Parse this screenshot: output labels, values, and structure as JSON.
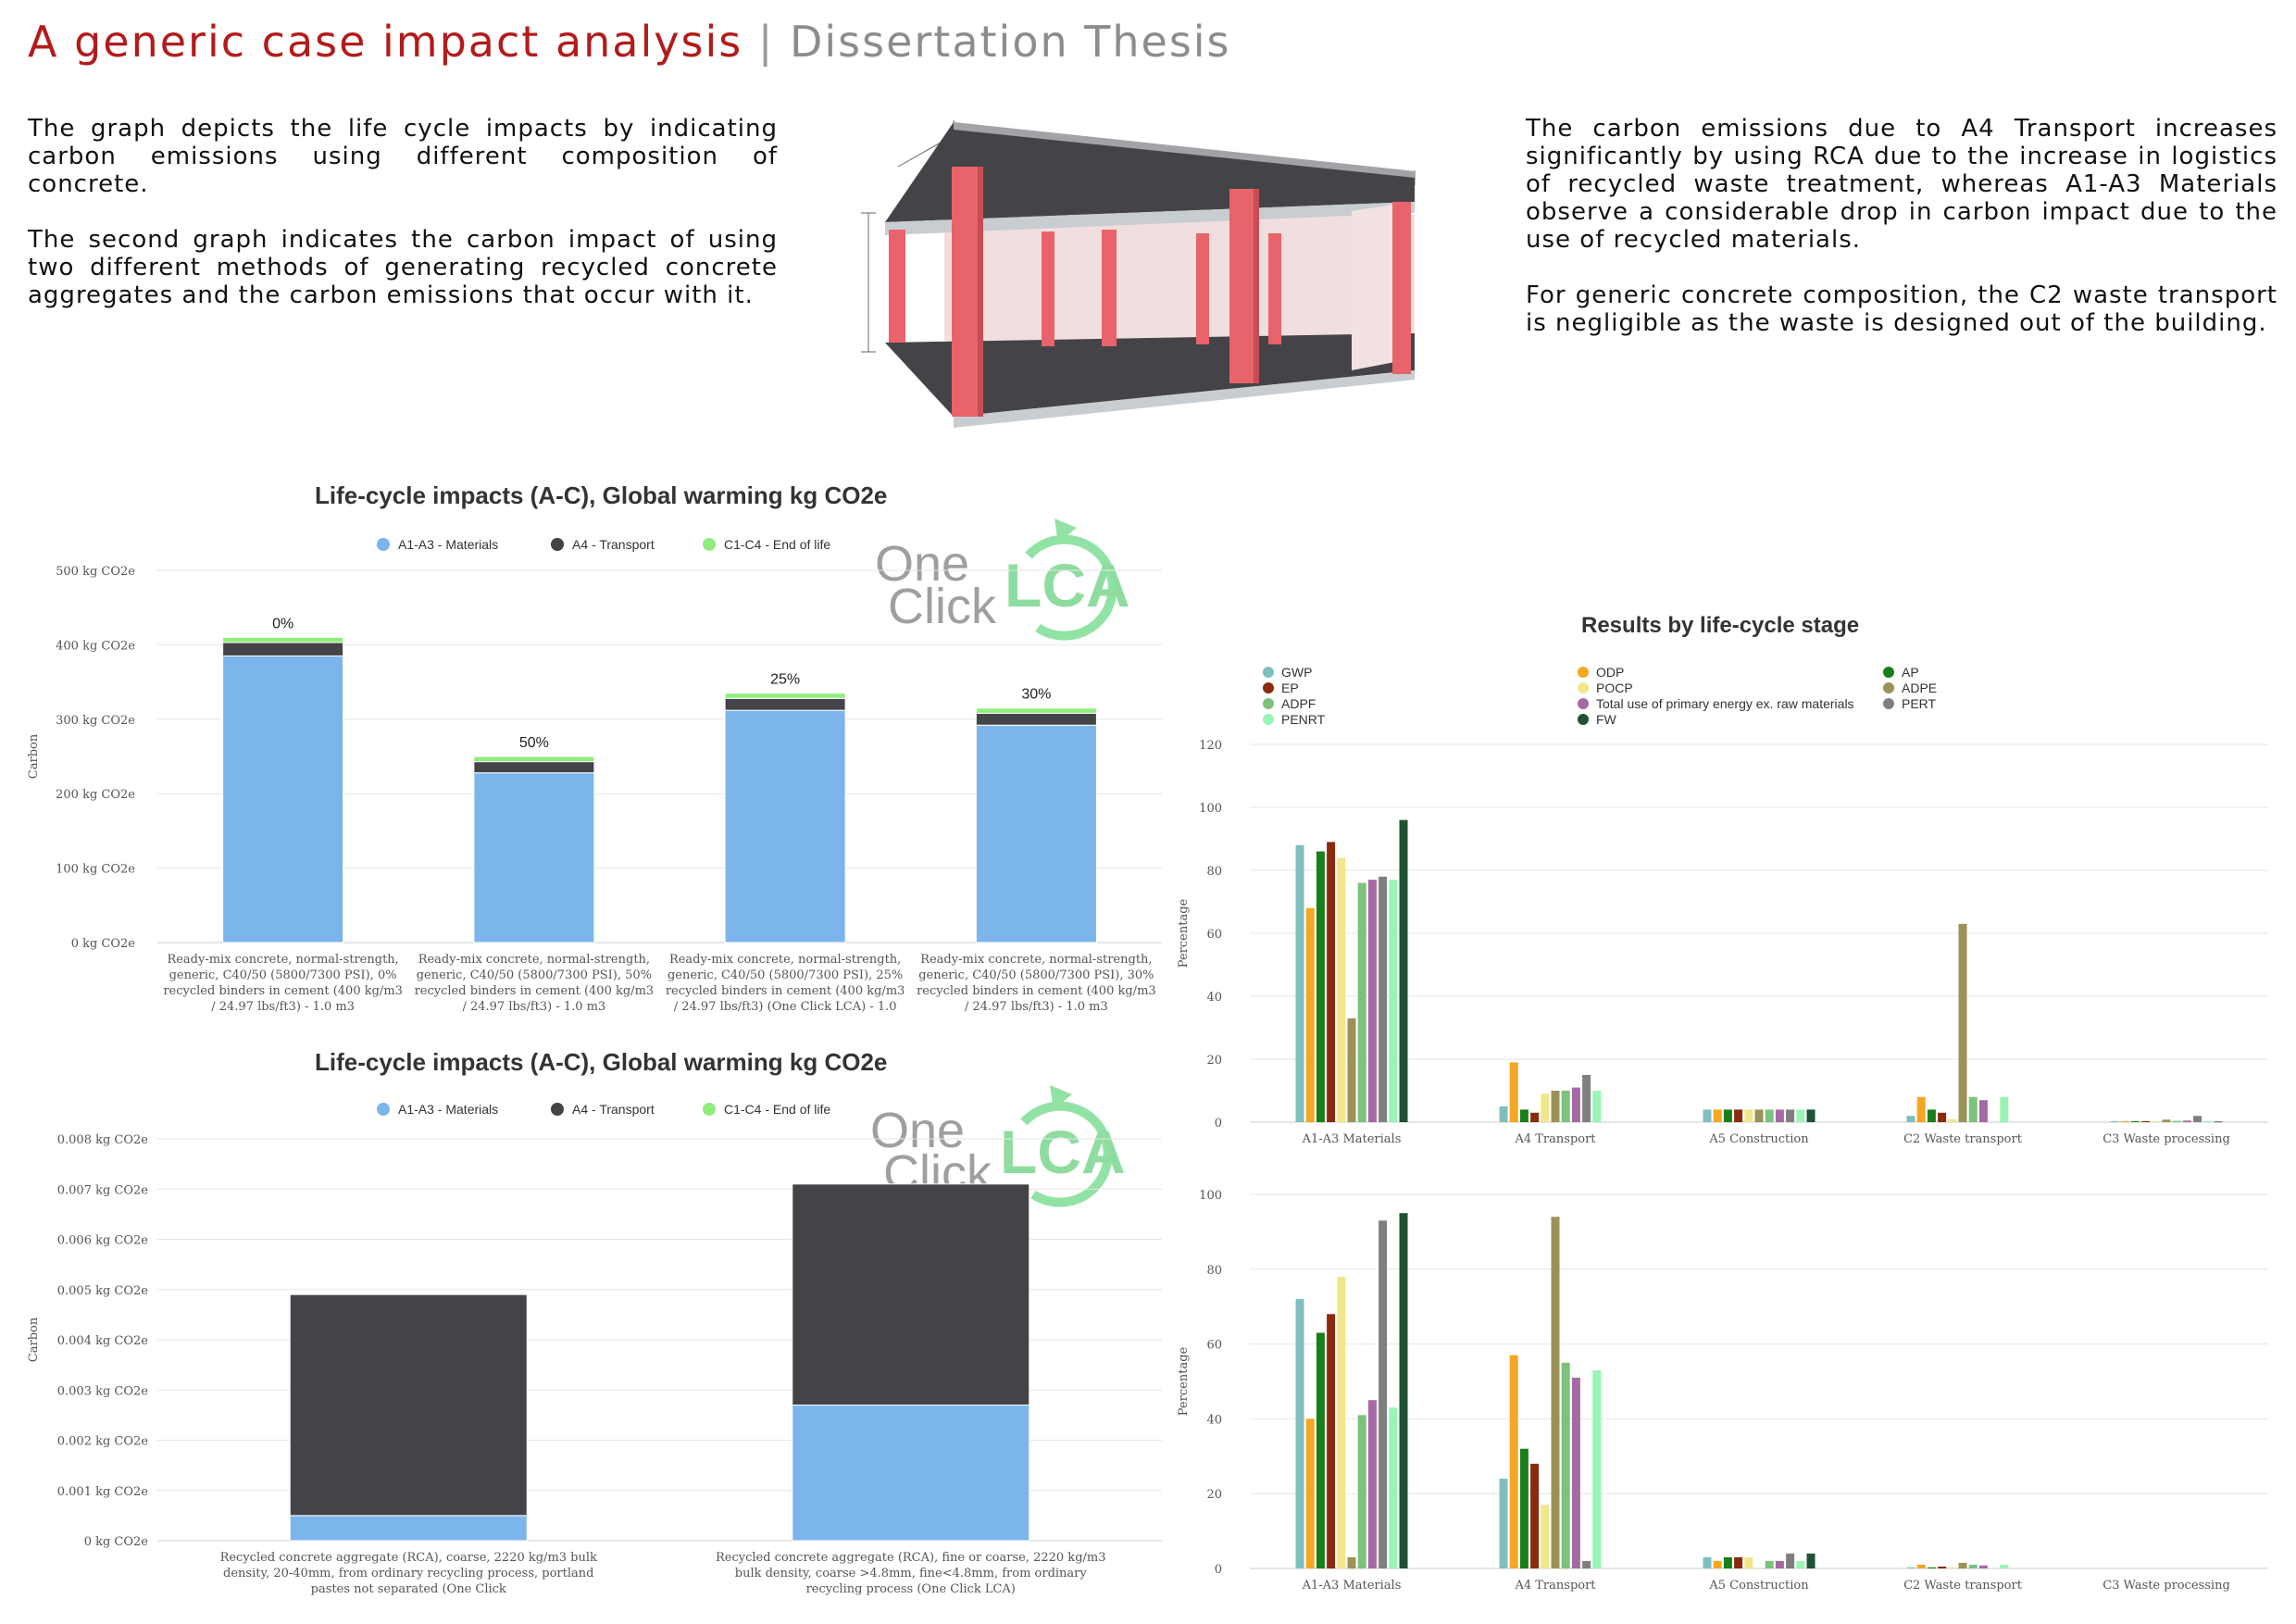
{
  "header": {
    "title": "A generic case impact analysis",
    "separator": "|",
    "subtitle": "Dissertation Thesis"
  },
  "text": {
    "left": [
      "The graph depicts the life cycle impacts by indicating carbon emissions using different composition of concrete.",
      "The second graph indicates the carbon impact of using two different methods of generating recycled concrete aggregates and the carbon emissions that occur with it."
    ],
    "right": [
      "The carbon emissions due to A4 Transport increases significantly by using RCA due to the increase in logistics of recycled waste treatment, whereas A1-A3 Materials observe a considerable drop in carbon impact due to the use of recycled materials.",
      "For generic concrete composition, the C2 waste transport is negligible as the waste is designed out of the building."
    ]
  },
  "logo": {
    "one": "One",
    "click": "Click",
    "lca": "LCA"
  },
  "chart_data": [
    {
      "type": "bar",
      "stacked": true,
      "title": "Life-cycle impacts (A-C), Global warming kg CO2e",
      "ylabel": "Carbon",
      "ylim": [
        0,
        500
      ],
      "yticks": [
        "0 kg CO2e",
        "100 kg CO2e",
        "200 kg CO2e",
        "300 kg CO2e",
        "400 kg CO2e",
        "500 kg CO2e"
      ],
      "grid": true,
      "legend_position": "top",
      "categories": [
        "Ready-mix concrete, normal-strength, generic, C40/50 (5800/7300 PSI), 0% recycled binders in cement (400 kg/m3 / 24.97 lbs/ft3) - 1.0 m3",
        "Ready-mix concrete, normal-strength, generic, C40/50 (5800/7300 PSI), 50% recycled binders in cement (400 kg/m3 / 24.97 lbs/ft3) - 1.0 m3",
        "Ready-mix concrete, normal-strength, generic, C40/50 (5800/7300 PSI), 25% recycled binders in cement (400 kg/m3 / 24.97 lbs/ft3) (One Click LCA) - 1.0",
        "Ready-mix concrete, normal-strength, generic, C40/50 (5800/7300 PSI), 30% recycled binders in cement (400 kg/m3 / 24.97 lbs/ft3) - 1.0 m3"
      ],
      "bar_labels": [
        "0%",
        "50%",
        "25%",
        "30%"
      ],
      "series": [
        {
          "name": "A1-A3 - Materials",
          "color": "#7cb5ec",
          "values": [
            385,
            228,
            312,
            292
          ]
        },
        {
          "name": "A4 - Transport",
          "color": "#434348",
          "values": [
            18,
            15,
            16,
            16
          ]
        },
        {
          "name": "C1-C4 - End of life",
          "color": "#90ed7d",
          "values": [
            7,
            7,
            7,
            7
          ]
        }
      ]
    },
    {
      "type": "bar",
      "stacked": true,
      "title": "Life-cycle impacts (A-C), Global warming kg CO2e",
      "ylabel": "Carbon",
      "ylim": [
        0,
        0.008
      ],
      "yticks": [
        "0 kg CO2e",
        "0.001 kg CO2e",
        "0.002 kg CO2e",
        "0.003 kg CO2e",
        "0.004 kg CO2e",
        "0.005 kg CO2e",
        "0.006 kg CO2e",
        "0.007 kg CO2e",
        "0.008 kg CO2e"
      ],
      "grid": true,
      "legend_position": "top",
      "categories": [
        "Recycled concrete aggregate (RCA), coarse, 2220 kg/m3 bulk density, 20-40mm, from ordinary recycling process, portland pastes not separated (One Click",
        "Recycled concrete aggregate (RCA), fine or coarse, 2220 kg/m3 bulk density, coarse >4.8mm, fine<4.8mm, from ordinary recycling process (One Click LCA)"
      ],
      "series": [
        {
          "name": "A1-A3 - Materials",
          "color": "#7cb5ec",
          "values": [
            0.0005,
            0.0027
          ]
        },
        {
          "name": "A4 - Transport",
          "color": "#434348",
          "values": [
            0.0044,
            0.0044
          ]
        },
        {
          "name": "C1-C4 - End of life",
          "color": "#90ed7d",
          "values": [
            0,
            0
          ]
        }
      ]
    },
    {
      "type": "bar",
      "title": "Results by life-cycle stage",
      "ylabel": "Percentage",
      "ylim": [
        0,
        120
      ],
      "yticks": [
        "0",
        "20",
        "40",
        "60",
        "80",
        "100",
        "120"
      ],
      "grid": true,
      "legend_position": "top",
      "categories": [
        "A1-A3 Materials",
        "A4 Transport",
        "A5 Construction",
        "C2 Waste transport",
        "C3 Waste processing"
      ],
      "series": [
        {
          "name": "GWP",
          "color": "#7fbfbf",
          "values": [
            88,
            5,
            4,
            2,
            0.3
          ]
        },
        {
          "name": "ODP",
          "color": "#f5a623",
          "values": [
            68,
            19,
            4,
            8,
            0.3
          ]
        },
        {
          "name": "AP",
          "color": "#1a7f1a",
          "values": [
            86,
            4,
            4,
            4,
            0.3
          ]
        },
        {
          "name": "EP",
          "color": "#8b2a0e",
          "values": [
            89,
            3,
            4,
            3,
            0.3
          ]
        },
        {
          "name": "POCP",
          "color": "#f2e68a",
          "values": [
            84,
            9,
            4,
            1,
            0.3
          ]
        },
        {
          "name": "ADPE",
          "color": "#9b9258",
          "values": [
            33,
            10,
            4,
            63,
            0.8
          ]
        },
        {
          "name": "ADPF",
          "color": "#7cc17c",
          "values": [
            76,
            10,
            4,
            8,
            0.4
          ]
        },
        {
          "name": "Total use of primary energy ex. raw materials",
          "color": "#a569a5",
          "values": [
            77,
            11,
            4,
            7,
            0.5
          ]
        },
        {
          "name": "PERT",
          "color": "#7f7f7f",
          "values": [
            78,
            15,
            4,
            0,
            2
          ]
        },
        {
          "name": "PENRT",
          "color": "#99f5b4",
          "values": [
            77,
            10,
            4,
            8,
            0.4
          ]
        },
        {
          "name": "FW",
          "color": "#1e5233",
          "values": [
            96,
            0,
            4,
            0,
            0.2
          ]
        }
      ]
    },
    {
      "type": "bar",
      "ylabel": "Percentage",
      "ylim": [
        0,
        100
      ],
      "yticks": [
        "0",
        "20",
        "40",
        "60",
        "80",
        "100"
      ],
      "grid": true,
      "categories": [
        "A1-A3 Materials",
        "A4 Transport",
        "A5 Construction",
        "C2 Waste transport",
        "C3 Waste processing"
      ],
      "series": [
        {
          "name": "GWP",
          "color": "#7fbfbf",
          "values": [
            72,
            24,
            3,
            0.3,
            0
          ]
        },
        {
          "name": "ODP",
          "color": "#f5a623",
          "values": [
            40,
            57,
            2,
            1,
            0
          ]
        },
        {
          "name": "AP",
          "color": "#1a7f1a",
          "values": [
            63,
            32,
            3,
            0.3,
            0
          ]
        },
        {
          "name": "EP",
          "color": "#8b2a0e",
          "values": [
            68,
            28,
            3,
            0.5,
            0
          ]
        },
        {
          "name": "POCP",
          "color": "#f2e68a",
          "values": [
            78,
            17,
            3,
            0.3,
            0
          ]
        },
        {
          "name": "ADPE",
          "color": "#9b9258",
          "values": [
            3,
            94,
            0,
            1.5,
            0
          ]
        },
        {
          "name": "ADPF",
          "color": "#7cc17c",
          "values": [
            41,
            55,
            2,
            1,
            0
          ]
        },
        {
          "name": "Total use of primary energy ex. raw materials",
          "color": "#a569a5",
          "values": [
            45,
            51,
            2,
            0.8,
            0
          ]
        },
        {
          "name": "PERT",
          "color": "#7f7f7f",
          "values": [
            93,
            2,
            4,
            0,
            0
          ]
        },
        {
          "name": "PENRT",
          "color": "#99f5b4",
          "values": [
            43,
            53,
            2,
            1,
            0
          ]
        },
        {
          "name": "FW",
          "color": "#1e5233",
          "values": [
            95,
            0,
            4,
            0,
            0
          ]
        }
      ]
    }
  ]
}
